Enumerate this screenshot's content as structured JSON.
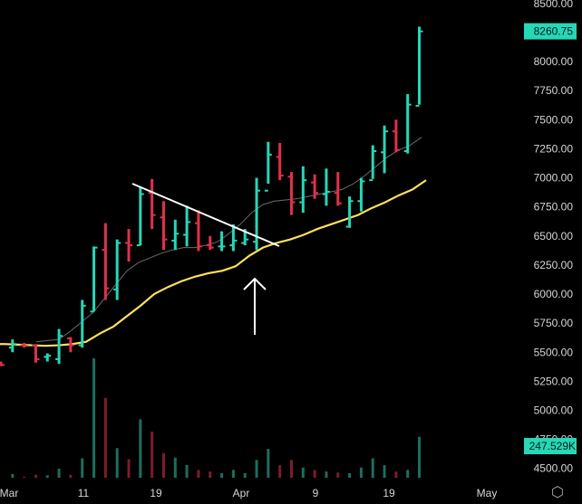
{
  "chart_data": {
    "type": "ohlc",
    "price_ticks": [
      "4500.00",
      "4750.00",
      "5000.00",
      "5250.00",
      "5500.00",
      "5750.00",
      "6000.00",
      "6250.00",
      "6500.00",
      "6750.00",
      "7000.00",
      "7250.00",
      "7500.00",
      "7750.00",
      "8000.00",
      "8250.00",
      "8500.00"
    ],
    "price_range": [
      4420,
      8530
    ],
    "x_tick_labels": [
      "Mar",
      "11",
      "19",
      "Apr",
      "9",
      "19",
      "May"
    ],
    "last_price_label": "8260.75",
    "last_volume_label": "247.529K",
    "colors": {
      "up": "#26d7b8",
      "down": "#e0314b",
      "vol_up": "#1b6e5e",
      "vol_down": "#7e1c29",
      "ema_slow": "#ffe15a",
      "ema_fast": "#6b6b6b",
      "trendline": "#ffffff",
      "arrow": "#ffffff",
      "badge": "#26d7b8"
    },
    "bars": [
      {
        "o": 5400,
        "h": 5420,
        "l": 5380,
        "c": 5390,
        "v": 0
      },
      {
        "o": 5540,
        "h": 5610,
        "l": 5500,
        "c": 5570,
        "v": 23
      },
      {
        "o": 5560,
        "h": 5580,
        "l": 5540,
        "c": 5555,
        "v": 6
      },
      {
        "o": 5560,
        "h": 5570,
        "l": 5410,
        "c": 5440,
        "v": 18
      },
      {
        "o": 5460,
        "h": 5490,
        "l": 5420,
        "c": 5470,
        "v": 15
      },
      {
        "o": 5440,
        "h": 5700,
        "l": 5400,
        "c": 5640,
        "v": 55
      },
      {
        "o": 5620,
        "h": 5630,
        "l": 5500,
        "c": 5560,
        "v": 18
      },
      {
        "o": 5560,
        "h": 5950,
        "l": 5540,
        "c": 5900,
        "v": 118
      },
      {
        "o": 5850,
        "h": 6410,
        "l": 5850,
        "c": 6400,
        "v": 725
      },
      {
        "o": 6380,
        "h": 6610,
        "l": 5950,
        "c": 6050,
        "v": 485
      },
      {
        "o": 6040,
        "h": 6470,
        "l": 5950,
        "c": 6440,
        "v": 180
      },
      {
        "o": 6440,
        "h": 6560,
        "l": 6280,
        "c": 6420,
        "v": 113
      },
      {
        "o": 6420,
        "h": 6920,
        "l": 6420,
        "c": 6860,
        "v": 355
      },
      {
        "o": 6870,
        "h": 6990,
        "l": 6560,
        "c": 6680,
        "v": 280
      },
      {
        "o": 6660,
        "h": 6800,
        "l": 6380,
        "c": 6470,
        "v": 150
      },
      {
        "o": 6460,
        "h": 6640,
        "l": 6380,
        "c": 6520,
        "v": 122
      },
      {
        "o": 6510,
        "h": 6760,
        "l": 6410,
        "c": 6620,
        "v": 78
      },
      {
        "o": 6610,
        "h": 6720,
        "l": 6370,
        "c": 6410,
        "v": 48
      },
      {
        "o": 6420,
        "h": 6500,
        "l": 6380,
        "c": 6400,
        "v": 38
      },
      {
        "o": 6410,
        "h": 6540,
        "l": 6370,
        "c": 6410,
        "v": 28
      },
      {
        "o": 6420,
        "h": 6600,
        "l": 6370,
        "c": 6460,
        "v": 48
      },
      {
        "o": 6440,
        "h": 6560,
        "l": 6420,
        "c": 6470,
        "v": 28
      },
      {
        "o": 6450,
        "h": 7000,
        "l": 6380,
        "c": 6890,
        "v": 108
      },
      {
        "o": 6890,
        "h": 7310,
        "l": 6950,
        "c": 7200,
        "v": 175
      },
      {
        "o": 7180,
        "h": 7300,
        "l": 6980,
        "c": 7020,
        "v": 76
      },
      {
        "o": 7010,
        "h": 7050,
        "l": 6680,
        "c": 6790,
        "v": 108
      },
      {
        "o": 6790,
        "h": 7100,
        "l": 6700,
        "c": 6980,
        "v": 62
      },
      {
        "o": 6960,
        "h": 7030,
        "l": 6820,
        "c": 6870,
        "v": 47
      },
      {
        "o": 6860,
        "h": 7080,
        "l": 6760,
        "c": 6880,
        "v": 38
      },
      {
        "o": 6870,
        "h": 7050,
        "l": 6760,
        "c": 6780,
        "v": 32
      },
      {
        "o": 6580,
        "h": 6840,
        "l": 6570,
        "c": 6800,
        "v": 28
      },
      {
        "o": 6800,
        "h": 7000,
        "l": 6710,
        "c": 6970,
        "v": 62
      },
      {
        "o": 6980,
        "h": 7280,
        "l": 6990,
        "c": 7230,
        "v": 118
      },
      {
        "o": 7220,
        "h": 7450,
        "l": 7040,
        "c": 7400,
        "v": 76
      },
      {
        "o": 7400,
        "h": 7500,
        "l": 7220,
        "c": 7240,
        "v": 38
      },
      {
        "o": 7230,
        "h": 7720,
        "l": 7210,
        "c": 7630,
        "v": 48
      },
      {
        "o": 7620,
        "h": 8300,
        "l": 7630,
        "c": 8260,
        "v": 248
      }
    ],
    "ema_slow": [
      5570,
      5570,
      5565,
      5560,
      5555,
      5560,
      5570,
      5590,
      5660,
      5720,
      5810,
      5900,
      6000,
      6060,
      6110,
      6150,
      6180,
      6200,
      6240,
      6330,
      6400,
      6440,
      6470,
      6510,
      6560,
      6600,
      6640,
      6680,
      6740,
      6790,
      6850,
      6900,
      6980
    ],
    "ema_fast": [
      5590,
      5600,
      5610,
      5680,
      5760,
      5840,
      5960,
      6080,
      6200,
      6270,
      6310,
      6350,
      6380,
      6400,
      6400,
      6420,
      6450,
      6520,
      6600,
      6700,
      6770,
      6800,
      6810,
      6820,
      6840,
      6860,
      6880,
      6900,
      6950,
      7020,
      7100,
      7180,
      7240,
      7280,
      7350
    ]
  }
}
